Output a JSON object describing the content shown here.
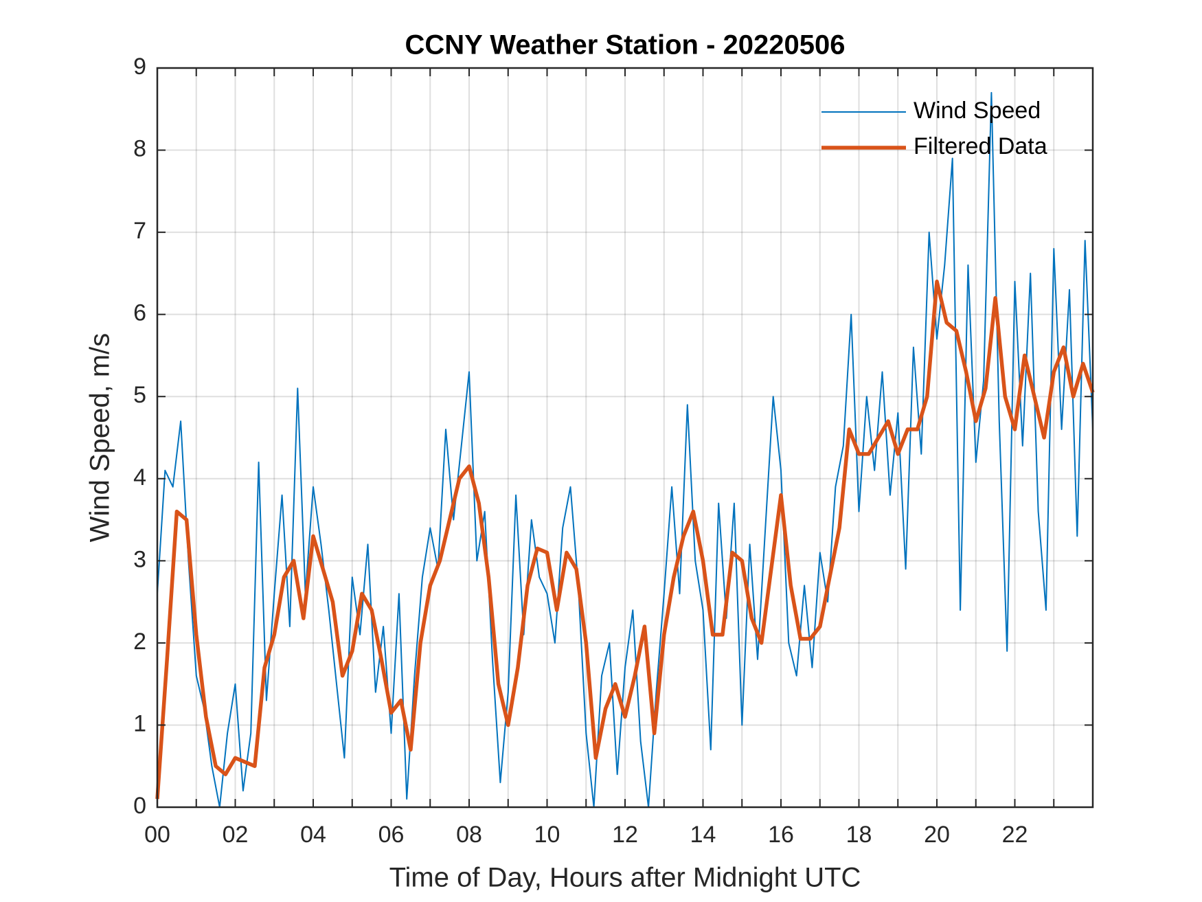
{
  "chart_data": {
    "type": "line",
    "title": "CCNY Weather Station - 20220506",
    "xlabel": "Time of Day, Hours after Midnight UTC",
    "ylabel": "Wind Speed, m/s",
    "xlim": [
      0,
      24
    ],
    "ylim": [
      0,
      9
    ],
    "grid": true,
    "legend": "upper right",
    "xticks": [
      {
        "value": 0,
        "label": "00"
      },
      {
        "value": 2,
        "label": "02"
      },
      {
        "value": 4,
        "label": "04"
      },
      {
        "value": 6,
        "label": "06"
      },
      {
        "value": 8,
        "label": "08"
      },
      {
        "value": 10,
        "label": "10"
      },
      {
        "value": 12,
        "label": "12"
      },
      {
        "value": 14,
        "label": "14"
      },
      {
        "value": 16,
        "label": "16"
      },
      {
        "value": 18,
        "label": "18"
      },
      {
        "value": 20,
        "label": "20"
      },
      {
        "value": 22,
        "label": "22"
      }
    ],
    "xminorticks": [
      1,
      3,
      5,
      7,
      9,
      11,
      13,
      15,
      17,
      19,
      21,
      23
    ],
    "yticks": [
      0,
      1,
      2,
      3,
      4,
      5,
      6,
      7,
      8,
      9
    ],
    "series": [
      {
        "name": "Wind Speed",
        "color": "#0072bd",
        "x": [
          0,
          0.2,
          0.4,
          0.6,
          0.8,
          1,
          1.2,
          1.4,
          1.6,
          1.8,
          2,
          2.2,
          2.4,
          2.6,
          2.8,
          3,
          3.2,
          3.4,
          3.6,
          3.8,
          4,
          4.2,
          4.4,
          4.6,
          4.8,
          5,
          5.2,
          5.4,
          5.6,
          5.8,
          6,
          6.2,
          6.4,
          6.6,
          6.8,
          7,
          7.2,
          7.4,
          7.6,
          7.8,
          8,
          8.2,
          8.4,
          8.6,
          8.8,
          9,
          9.2,
          9.4,
          9.6,
          9.8,
          10,
          10.2,
          10.4,
          10.6,
          10.8,
          11,
          11.2,
          11.4,
          11.6,
          11.8,
          12,
          12.2,
          12.4,
          12.6,
          12.8,
          13,
          13.2,
          13.4,
          13.6,
          13.8,
          14,
          14.2,
          14.4,
          14.6,
          14.8,
          15,
          15.2,
          15.4,
          15.6,
          15.8,
          16,
          16.2,
          16.4,
          16.6,
          16.8,
          17,
          17.2,
          17.4,
          17.6,
          17.8,
          18,
          18.2,
          18.4,
          18.6,
          18.8,
          19,
          19.2,
          19.4,
          19.6,
          19.8,
          20,
          20.2,
          20.4,
          20.6,
          20.8,
          21,
          21.2,
          21.4,
          21.6,
          21.8,
          22,
          22.2,
          22.4,
          22.6,
          22.8,
          23,
          23.2,
          23.4,
          23.6,
          23.8,
          24
        ],
        "values": [
          2.6,
          4.1,
          3.9,
          4.7,
          3.0,
          1.6,
          1.2,
          0.5,
          0.0,
          0.9,
          1.5,
          0.2,
          0.9,
          4.2,
          1.3,
          2.6,
          3.8,
          2.2,
          5.1,
          2.6,
          3.9,
          3.2,
          2.4,
          1.5,
          0.6,
          2.8,
          2.1,
          3.2,
          1.4,
          2.2,
          0.9,
          2.6,
          0.1,
          1.6,
          2.8,
          3.4,
          2.9,
          4.6,
          3.5,
          4.4,
          5.3,
          3.0,
          3.6,
          1.8,
          0.3,
          1.4,
          3.8,
          2.1,
          3.5,
          2.8,
          2.6,
          2.0,
          3.4,
          3.9,
          2.7,
          0.9,
          0.0,
          1.6,
          2.0,
          0.4,
          1.7,
          2.4,
          0.8,
          0.0,
          1.4,
          2.6,
          3.9,
          2.6,
          4.9,
          3.0,
          2.4,
          0.7,
          3.7,
          2.3,
          3.7,
          1.0,
          3.2,
          1.8,
          3.4,
          5.0,
          4.1,
          2.0,
          1.6,
          2.7,
          1.7,
          3.1,
          2.5,
          3.9,
          4.4,
          6.0,
          3.6,
          5.0,
          4.1,
          5.3,
          3.8,
          4.8,
          2.9,
          5.6,
          4.3,
          7.0,
          5.7,
          6.6,
          7.9,
          2.4,
          6.6,
          4.2,
          5.2,
          8.7,
          4.7,
          1.9,
          6.4,
          4.4,
          6.5,
          3.6,
          2.4,
          6.8,
          4.6,
          6.3,
          3.3,
          6.9,
          4.6
        ]
      },
      {
        "name": "Filtered Data",
        "color": "#d95319",
        "x": [
          0,
          0.25,
          0.5,
          0.75,
          1,
          1.25,
          1.5,
          1.75,
          2,
          2.25,
          2.5,
          2.75,
          3,
          3.25,
          3.5,
          3.75,
          4,
          4.25,
          4.5,
          4.75,
          5,
          5.25,
          5.5,
          5.75,
          6,
          6.25,
          6.5,
          6.75,
          7,
          7.25,
          7.5,
          7.75,
          8,
          8.25,
          8.5,
          8.75,
          9,
          9.25,
          9.5,
          9.75,
          10,
          10.25,
          10.5,
          10.75,
          11,
          11.25,
          11.5,
          11.75,
          12,
          12.25,
          12.5,
          12.75,
          13,
          13.25,
          13.5,
          13.75,
          14,
          14.25,
          14.5,
          14.75,
          15,
          15.25,
          15.5,
          15.75,
          16,
          16.25,
          16.5,
          16.75,
          17,
          17.25,
          17.5,
          17.75,
          18,
          18.25,
          18.5,
          18.75,
          19,
          19.25,
          19.5,
          19.75,
          20,
          20.25,
          20.5,
          20.75,
          21,
          21.25,
          21.5,
          21.75,
          22,
          22.25,
          22.5,
          22.75,
          23,
          23.25,
          23.5,
          23.75,
          24
        ],
        "values": [
          0.1,
          1.8,
          3.6,
          3.5,
          2.1,
          1.1,
          0.5,
          0.4,
          0.6,
          0.55,
          0.5,
          1.7,
          2.1,
          2.8,
          3.0,
          2.3,
          3.3,
          2.9,
          2.5,
          1.6,
          1.9,
          2.6,
          2.4,
          1.8,
          1.15,
          1.3,
          0.7,
          2.0,
          2.7,
          3.0,
          3.5,
          4.0,
          4.15,
          3.7,
          2.8,
          1.5,
          1.0,
          1.7,
          2.7,
          3.15,
          3.1,
          2.4,
          3.1,
          2.9,
          2.0,
          0.6,
          1.2,
          1.5,
          1.1,
          1.6,
          2.2,
          0.9,
          2.1,
          2.8,
          3.3,
          3.6,
          3.0,
          2.1,
          2.1,
          3.1,
          3.0,
          2.3,
          2.0,
          2.9,
          3.8,
          2.7,
          2.05,
          2.05,
          2.2,
          2.8,
          3.4,
          4.6,
          4.3,
          4.3,
          4.5,
          4.7,
          4.3,
          4.6,
          4.6,
          5.0,
          6.4,
          5.9,
          5.8,
          5.3,
          4.7,
          5.1,
          6.2,
          5.0,
          4.6,
          5.5,
          5.0,
          4.5,
          5.3,
          5.6,
          5.0,
          5.4,
          5.05
        ]
      }
    ]
  }
}
